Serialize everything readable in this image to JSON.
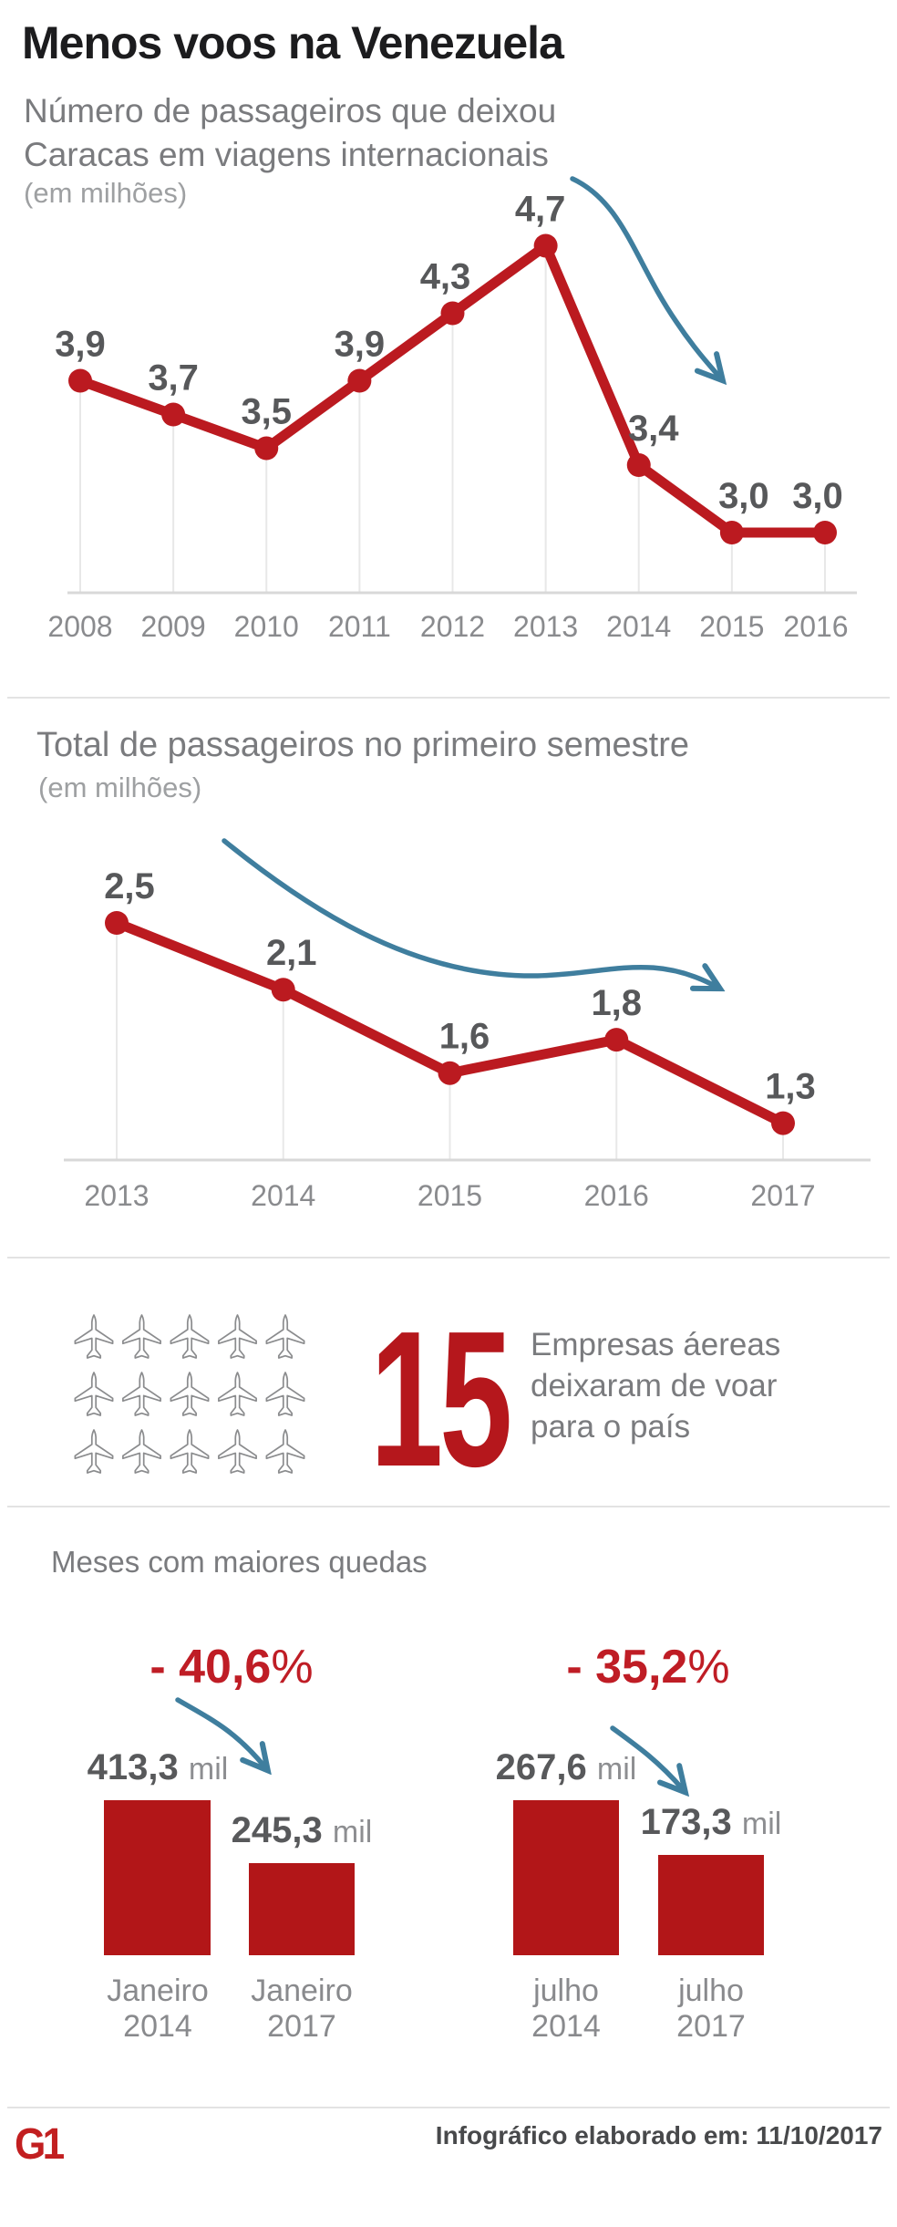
{
  "page": {
    "title": "Menos voos na Venezuela",
    "heading_drops": "Meses com maiores quedas",
    "unit_mil": "mil"
  },
  "colors": {
    "red": "#bb1a20",
    "red_bar": "#b21618",
    "red_text": "#bf1d25",
    "blue": "#3f7e9e",
    "gray_text": "#7a7b7e",
    "dark_text": "#1c1c1e"
  },
  "airlines": {
    "count": 15,
    "number": "15",
    "text": "Empresas áereas\ndeixaram de voar\npara o país"
  },
  "footer": {
    "logo": "G1",
    "credit": "Infográfico elaborado em: 11/10/2017"
  },
  "chart_data": [
    {
      "id": "caracas-departures",
      "type": "line",
      "title": "Número de passageiros que deixou Caracas em viagens internacionais",
      "unit": "(em milhões)",
      "categories": [
        "2008",
        "2009",
        "2010",
        "2011",
        "2012",
        "2013",
        "2014",
        "2015",
        "2016"
      ],
      "values": [
        3.9,
        3.7,
        3.5,
        3.9,
        4.3,
        4.7,
        3.4,
        3.0,
        3.0
      ],
      "labels": [
        "3,9",
        "3,7",
        "3,5",
        "3,9",
        "4,3",
        "4,7",
        "3,4",
        "3,0",
        "3,0"
      ],
      "ylim": [
        2.5,
        5.0
      ],
      "grid": "vertical-droplines",
      "annotation": "hand-drawn blue arrow pointing down-right"
    },
    {
      "id": "first-semester-total",
      "type": "line",
      "title": "Total de passageiros no primeiro semestre",
      "unit": "(em milhões)",
      "categories": [
        "2013",
        "2014",
        "2015",
        "2016",
        "2017"
      ],
      "values": [
        2.5,
        2.1,
        1.6,
        1.8,
        1.3
      ],
      "labels": [
        "2,5",
        "2,1",
        "1,6",
        "1,8",
        "1,3"
      ],
      "ylim": [
        0.8,
        3.0
      ],
      "grid": "vertical-droplines",
      "annotation": "hand-drawn blue arrow pointing down-right"
    },
    {
      "id": "biggest-monthly-drops",
      "type": "bar",
      "title": "Meses com maiores quedas",
      "groups": [
        {
          "pct_num": "- 40,6",
          "pct_sym": "%",
          "bars": [
            {
              "display": "413,3",
              "value": 413.3,
              "unit": "mil",
              "label": "Janeiro\n2014"
            },
            {
              "display": "245,3",
              "value": 245.3,
              "unit": "mil",
              "label": "Janeiro\n2017"
            }
          ]
        },
        {
          "pct_num": "- 35,2",
          "pct_sym": "%",
          "bars": [
            {
              "display": "267,6",
              "value": 267.6,
              "unit": "mil",
              "label": "julho\n2014"
            },
            {
              "display": "173,3",
              "value": 173.3,
              "unit": "mil",
              "label": "julho\n2017"
            }
          ]
        }
      ]
    }
  ]
}
